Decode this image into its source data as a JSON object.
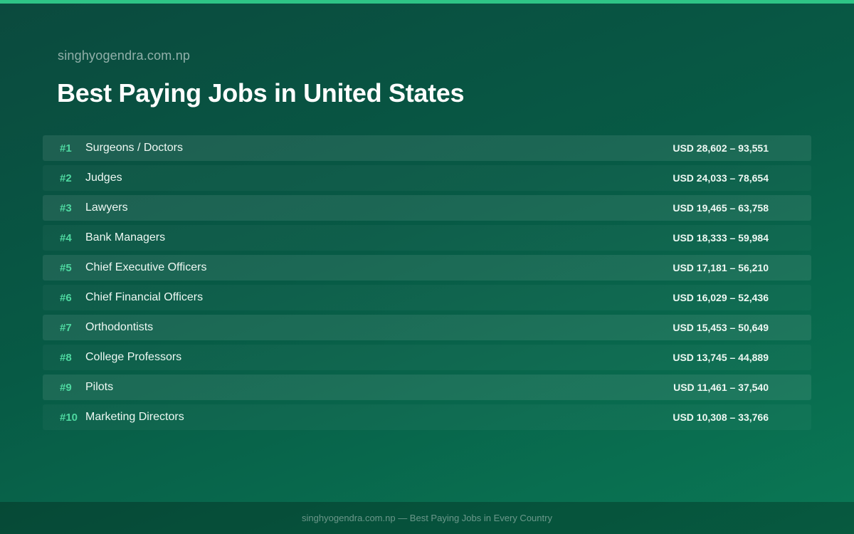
{
  "header": {
    "site": "singhyogendra.com.np",
    "title": "Best Paying Jobs in United States"
  },
  "colors": {
    "accent": "#2ec486",
    "rank": "#4ed8a0"
  },
  "jobs": [
    {
      "rank": "#1",
      "title": "Surgeons / Doctors",
      "salary": "USD 28,602 – 93,551"
    },
    {
      "rank": "#2",
      "title": "Judges",
      "salary": "USD 24,033 – 78,654"
    },
    {
      "rank": "#3",
      "title": "Lawyers",
      "salary": "USD 19,465 – 63,758"
    },
    {
      "rank": "#4",
      "title": "Bank Managers",
      "salary": "USD 18,333 – 59,984"
    },
    {
      "rank": "#5",
      "title": "Chief Executive Officers",
      "salary": "USD 17,181 – 56,210"
    },
    {
      "rank": "#6",
      "title": "Chief Financial Officers",
      "salary": "USD 16,029 – 52,436"
    },
    {
      "rank": "#7",
      "title": "Orthodontists",
      "salary": "USD 15,453 – 50,649"
    },
    {
      "rank": "#8",
      "title": "College Professors",
      "salary": "USD 13,745 – 44,889"
    },
    {
      "rank": "#9",
      "title": "Pilots",
      "salary": "USD 11,461 – 37,540"
    },
    {
      "rank": "#10",
      "title": "Marketing Directors",
      "salary": "USD 10,308 – 33,766"
    }
  ],
  "footer": {
    "text": "singhyogendra.com.np — Best Paying Jobs in Every Country"
  }
}
